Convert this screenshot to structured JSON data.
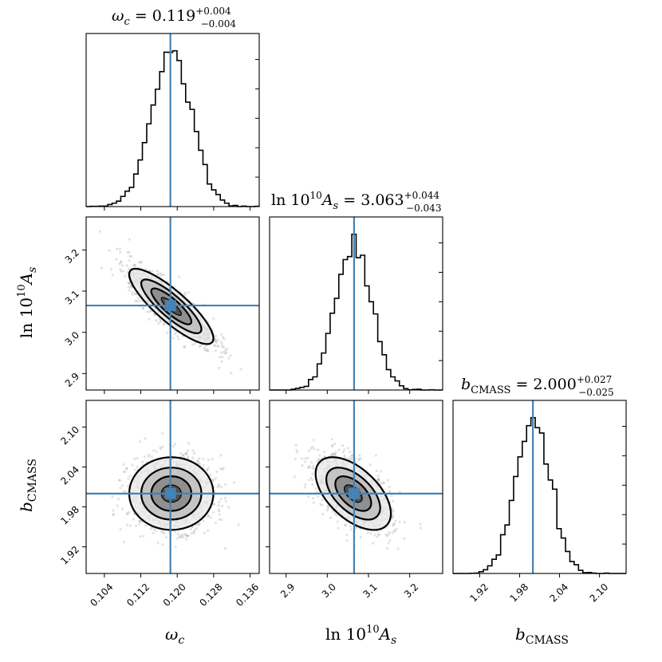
{
  "chart_data": {
    "type": "corner",
    "truth_color": "#4682b4",
    "params": [
      {
        "name": "omega_c",
        "label_main": "ω",
        "label_sub": "c",
        "ticks": [
          "0.104",
          "0.112",
          "0.120",
          "0.128",
          "0.136"
        ],
        "tick_values": [
          0.104,
          0.112,
          0.12,
          0.128,
          0.136
        ],
        "range": [
          0.1,
          0.138
        ],
        "truth": 0.1185,
        "median": "0.119",
        "plus": "+0.004",
        "minus": "−0.004",
        "mean": 0.1187,
        "sigma": 0.0044
      },
      {
        "name": "ln10As",
        "label_main": "ln 10",
        "label_sup": "10",
        "label_tail": "A",
        "label_sub": "s",
        "ticks": [
          "2.9",
          "3.0",
          "3.1",
          "3.2"
        ],
        "tick_values": [
          2.9,
          3.0,
          3.1,
          3.2
        ],
        "range": [
          2.86,
          3.28
        ],
        "truth": 3.065,
        "median": "3.063",
        "plus": "+0.044",
        "minus": "−0.043",
        "mean": 3.063,
        "sigma": 0.0435
      },
      {
        "name": "b_CMASS",
        "label_main": "b",
        "label_sub": "CMASS",
        "ticks": [
          "1.92",
          "1.98",
          "2.04",
          "2.10"
        ],
        "tick_values": [
          1.92,
          1.98,
          2.04,
          2.1
        ],
        "range": [
          1.88,
          2.14
        ],
        "truth": 2.0,
        "median": "2.000",
        "plus": "+0.027",
        "minus": "−0.025",
        "mean": 2.0,
        "sigma": 0.026
      }
    ],
    "correlations": {
      "0-1": -0.85,
      "0-2": 0.0,
      "1-2": -0.55
    }
  }
}
